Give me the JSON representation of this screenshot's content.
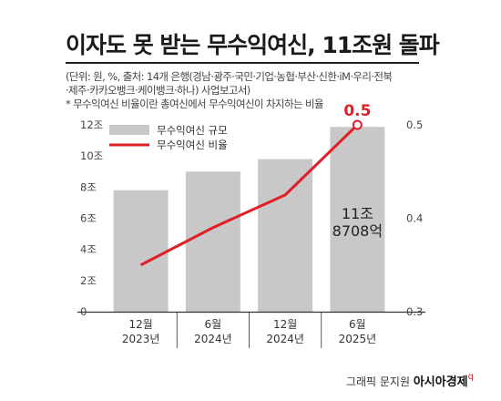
{
  "header": {
    "title": "이자도 못 받는 무수익여신, 11조원 돌파",
    "source_line1": "(단위: 원, %, 출처: 14개 은행(경남·광주·국민·기업·농협·부산·신한·iM·우리·전북",
    "source_line2": "·제주·카카오뱅크·케이뱅크·하나) 사업보고서)",
    "footnote": "* 무수익여신 비율이란 총여신에서 무수익여신이 차지하는 비율"
  },
  "credit": {
    "prefix": "그래픽 문지원",
    "brand": "아시아경제",
    "mark": "q"
  },
  "colors": {
    "bar": "#c8c8c8",
    "line": "#e01e26",
    "axis": "#333333",
    "grid": "#333333",
    "bar_label": "#222222"
  },
  "chart_data": {
    "type": "bar",
    "categories": [
      {
        "month": "12월",
        "year": "2023년"
      },
      {
        "month": "6월",
        "year": "2024년"
      },
      {
        "month": "12월",
        "year": "2024년"
      },
      {
        "month": "6월",
        "year": "2025년"
      }
    ],
    "left_axis": {
      "ticks": [
        "0",
        "2조",
        "4조",
        "6조",
        "8조",
        "10조",
        "12조"
      ],
      "range": [
        0,
        12
      ]
    },
    "right_axis": {
      "ticks": [
        "0.3",
        "0.4",
        "0.5"
      ],
      "range": [
        0.3,
        0.5
      ]
    },
    "series": [
      {
        "name": "무수익여신 규모",
        "type": "bar",
        "axis": "left",
        "values": [
          7.8,
          9.0,
          9.8,
          11.87
        ]
      },
      {
        "name": "무수익여신 비율",
        "type": "line",
        "axis": "right",
        "values": [
          0.35,
          0.39,
          0.425,
          0.5
        ]
      }
    ],
    "bar_label": {
      "index": 3,
      "lines": [
        "11조",
        "8708억"
      ]
    },
    "line_label": {
      "index": 3,
      "text": "0.5"
    },
    "legend": "top-left"
  }
}
